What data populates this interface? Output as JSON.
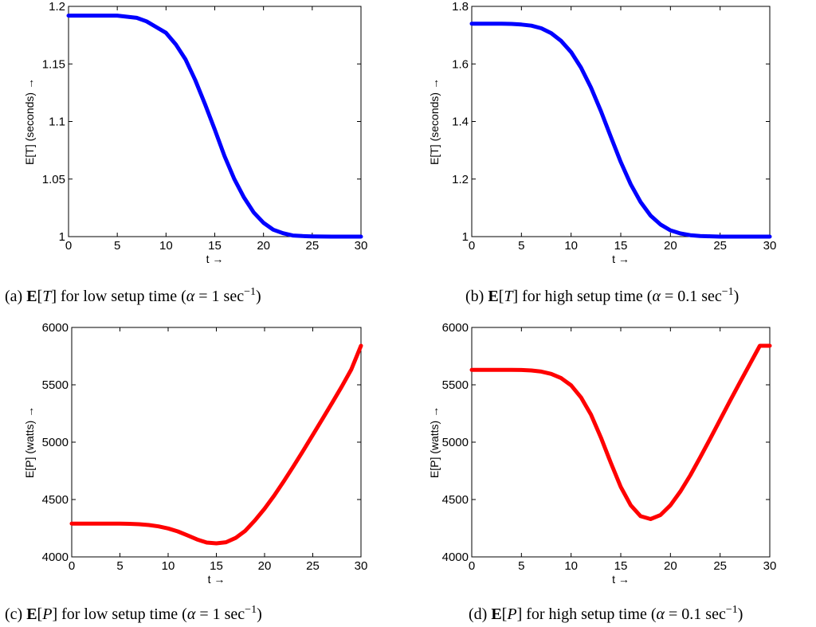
{
  "chart_data": [
    {
      "type": "line",
      "ylabel": "E[T]  (seconds) →",
      "xlabel": "t →",
      "xlim": [
        0,
        30
      ],
      "ylim": [
        1,
        1.2
      ],
      "xticks": [
        "0",
        "5",
        "10",
        "15",
        "20",
        "25",
        "30"
      ],
      "yticks": [
        "1",
        "1.05",
        "1.1",
        "1.15",
        "1.2"
      ],
      "color": "#0000ff",
      "series": [
        {
          "x": [
            0,
            1,
            2,
            3,
            4,
            5,
            6,
            7,
            8,
            9,
            10,
            11,
            12,
            13,
            14,
            15,
            16,
            17,
            18,
            19,
            20,
            21,
            22,
            23,
            24,
            25,
            26,
            27,
            28,
            29,
            30
          ],
          "values": [
            1.192,
            1.192,
            1.192,
            1.192,
            1.192,
            1.192,
            1.191,
            1.19,
            1.187,
            1.182,
            1.177,
            1.167,
            1.154,
            1.136,
            1.115,
            1.093,
            1.07,
            1.05,
            1.034,
            1.021,
            1.012,
            1.006,
            1.003,
            1.001,
            1.0005,
            1.0002,
            1.0001,
            1.0,
            1.0,
            1.0,
            1.0
          ]
        }
      ],
      "caption": {
        "letter": "(a) ",
        "bold": "E",
        "rest_a": "[",
        "italic": "T",
        "rest_b": "] for low setup time (",
        "alpha": "α",
        "eq": " = 1 sec",
        "sup": "−1",
        "close": ")"
      }
    },
    {
      "type": "line",
      "ylabel": "E[T]  (seconds) →",
      "xlabel": "t →",
      "xlim": [
        0,
        30
      ],
      "ylim": [
        1,
        1.8
      ],
      "xticks": [
        "0",
        "5",
        "10",
        "15",
        "20",
        "25",
        "30"
      ],
      "yticks": [
        "1",
        "1.2",
        "1.4",
        "1.6",
        "1.8"
      ],
      "color": "#0000ff",
      "series": [
        {
          "x": [
            0,
            1,
            2,
            3,
            4,
            5,
            6,
            7,
            8,
            9,
            10,
            11,
            12,
            13,
            14,
            15,
            16,
            17,
            18,
            19,
            20,
            21,
            22,
            23,
            24,
            25,
            26,
            27,
            28,
            29,
            30
          ],
          "values": [
            1.74,
            1.74,
            1.74,
            1.74,
            1.739,
            1.737,
            1.733,
            1.724,
            1.707,
            1.68,
            1.641,
            1.587,
            1.518,
            1.436,
            1.347,
            1.259,
            1.182,
            1.12,
            1.073,
            1.042,
            1.022,
            1.011,
            1.005,
            1.002,
            1.001,
            1.0,
            1.0,
            1.0,
            1.0,
            1.0,
            1.0
          ]
        }
      ],
      "caption": {
        "letter": "(b) ",
        "bold": "E",
        "rest_a": "[",
        "italic": "T",
        "rest_b": "] for high setup time (",
        "alpha": "α",
        "eq": " = 0.1 sec",
        "sup": "−1",
        "close": ")"
      }
    },
    {
      "type": "line",
      "ylabel": "E[P]  (watts) →",
      "xlabel": "t →",
      "xlim": [
        0,
        30
      ],
      "ylim": [
        4000,
        6000
      ],
      "xticks": [
        "0",
        "5",
        "10",
        "15",
        "20",
        "25",
        "30"
      ],
      "yticks": [
        "4000",
        "4500",
        "5000",
        "5500",
        "6000"
      ],
      "color": "#ff0000",
      "series": [
        {
          "x": [
            0,
            1,
            2,
            3,
            4,
            5,
            6,
            7,
            8,
            9,
            10,
            11,
            12,
            13,
            14,
            15,
            16,
            17,
            18,
            19,
            20,
            21,
            22,
            23,
            24,
            25,
            26,
            27,
            28,
            29,
            30
          ],
          "values": [
            4290,
            4290,
            4290,
            4290,
            4290,
            4290,
            4288,
            4285,
            4278,
            4266,
            4248,
            4222,
            4188,
            4152,
            4125,
            4118,
            4128,
            4165,
            4228,
            4318,
            4420,
            4535,
            4660,
            4790,
            4925,
            5063,
            5202,
            5342,
            5484,
            5635,
            5840
          ]
        }
      ],
      "caption": {
        "letter": "(c) ",
        "bold": "E",
        "rest_a": "[",
        "italic": "P",
        "rest_b": "] for low setup time (",
        "alpha": "α",
        "eq": " = 1 sec",
        "sup": "−1",
        "close": ")"
      }
    },
    {
      "type": "line",
      "ylabel": "E[P]  (watts) →",
      "xlabel": "t →",
      "xlim": [
        0,
        30
      ],
      "ylim": [
        4000,
        6000
      ],
      "xticks": [
        "0",
        "5",
        "10",
        "15",
        "20",
        "25",
        "30"
      ],
      "yticks": [
        "4000",
        "4500",
        "5000",
        "5500",
        "6000"
      ],
      "color": "#ff0000",
      "series": [
        {
          "x": [
            0,
            1,
            2,
            3,
            4,
            5,
            6,
            7,
            8,
            9,
            10,
            11,
            12,
            13,
            14,
            15,
            16,
            17,
            18,
            19,
            20,
            21,
            22,
            23,
            24,
            25,
            26,
            27,
            28,
            29,
            30
          ],
          "values": [
            5630,
            5630,
            5630,
            5630,
            5630,
            5629,
            5625,
            5615,
            5595,
            5558,
            5495,
            5390,
            5240,
            5040,
            4820,
            4610,
            4450,
            4355,
            4330,
            4365,
            4450,
            4570,
            4712,
            4868,
            5030,
            5196,
            5360,
            5522,
            5682,
            5840,
            5840
          ]
        }
      ],
      "caption": {
        "letter": "(d) ",
        "bold": "E",
        "rest_a": "[",
        "italic": "P",
        "rest_b": "] for high setup time (",
        "alpha": "α",
        "eq": " = 0.1 sec",
        "sup": "−1",
        "close": ")"
      }
    }
  ]
}
